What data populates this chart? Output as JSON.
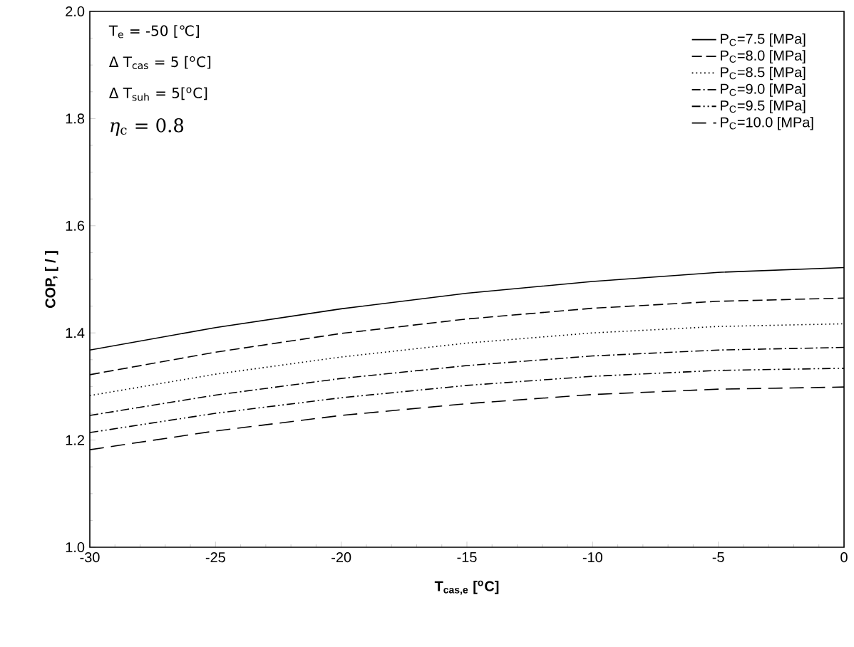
{
  "chart_data": {
    "type": "line",
    "xlabel": "**T$_{cas,e}$ [$^{o}$C]**",
    "ylabel": "**COP, [ / ]**",
    "x": [
      -30,
      -25,
      -20,
      -15,
      -10,
      -5,
      0
    ],
    "series": [
      {
        "name": "P$_{C}$=7.5 [MPa]",
        "color": "#000000",
        "line_style": "solid",
        "values": [
          1.368,
          1.41,
          1.445,
          1.474,
          1.496,
          1.513,
          1.522
        ]
      },
      {
        "name": "P$_{C}$=8.0 [MPa]",
        "color": "#000000",
        "line_style": "dashed",
        "values": [
          1.322,
          1.364,
          1.399,
          1.426,
          1.446,
          1.459,
          1.465
        ]
      },
      {
        "name": "P$_{C}$=8.5 [MPa]",
        "color": "#000000",
        "line_style": "dotted",
        "values": [
          1.283,
          1.323,
          1.355,
          1.381,
          1.4,
          1.412,
          1.417
        ]
      },
      {
        "name": "P$_{C}$=9.0 [MPa]",
        "color": "#000000",
        "line_style": "dashdot",
        "values": [
          1.246,
          1.284,
          1.315,
          1.339,
          1.357,
          1.368,
          1.373
        ]
      },
      {
        "name": "P$_{C}$=9.5 [MPa]",
        "color": "#000000",
        "line_style": "dashdotdot",
        "values": [
          1.214,
          1.25,
          1.279,
          1.302,
          1.319,
          1.33,
          1.334
        ]
      },
      {
        "name": "P$_{C}$=10.0 [MPa]",
        "color": "#000000",
        "line_style": "longdashed",
        "values": [
          1.182,
          1.217,
          1.246,
          1.268,
          1.285,
          1.295,
          1.299
        ]
      }
    ],
    "xlim": [
      -30,
      0
    ],
    "xticks": [
      -30,
      -25,
      -20,
      -15,
      -10,
      -5,
      0
    ],
    "ylim": [
      1.0,
      2.0
    ],
    "yticks": [
      {
        "value": 1.0,
        "label": "1.0"
      },
      {
        "value": 1.2,
        "label": "1.2"
      },
      {
        "value": 1.4,
        "label": "1.4"
      },
      {
        "value": 1.6,
        "label": "1.6"
      },
      {
        "value": 1.8,
        "label": "1.8"
      },
      {
        "value": 2.0,
        "label": "2.0"
      }
    ],
    "grid": false,
    "legend": "top right",
    "marker": "none",
    "annotations": [
      "T$_{e}$ = -50 [℃]",
      "Δ  T$_{cas}$ = 5 [$^{o}$C]",
      "Δ  T$_{suh}$ = 5[$^{o}$C]",
      "*η*$_{c}$ = 0.8"
    ]
  }
}
